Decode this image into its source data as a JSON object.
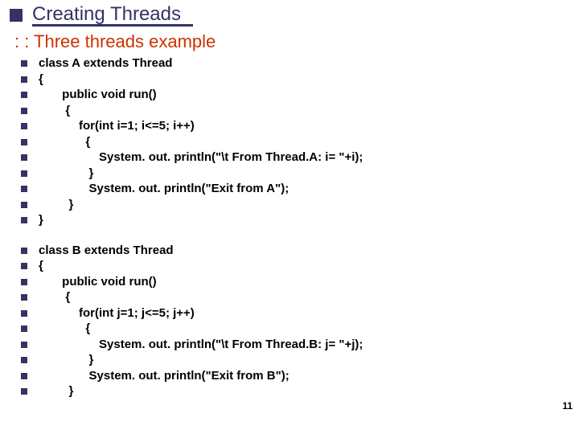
{
  "title": "Creating Threads",
  "subtitle": ": : Three threads example",
  "blockA": {
    "lines": [
      "class A extends Thread",
      "{",
      "       public void run()",
      "        {",
      "            for(int i=1; i<=5; i++)",
      "              {",
      "                  System. out. println(\"\\t From Thread.A: i= \"+i);",
      "               }",
      "               System. out. println(\"Exit from A\");",
      "         }",
      "}"
    ]
  },
  "blockB": {
    "lines": [
      "class B extends Thread",
      "{",
      "       public void run()",
      "        {",
      "            for(int j=1; j<=5; j++)",
      "              {",
      "                  System. out. println(\"\\t From Thread.B: j= \"+j);",
      "               }",
      "               System. out. println(\"Exit from B\");",
      "         }"
    ]
  },
  "pageNumber": "11",
  "colors": {
    "titleColor": "#333366",
    "subtitleColor": "#cc3300",
    "bulletColor": "#333366",
    "codeColor": "#000000",
    "background": "#ffffff"
  },
  "typography": {
    "titleFontSize": 24,
    "subtitleFontSize": 22,
    "codeFontSize": 15,
    "pageNumFontSize": 12
  }
}
